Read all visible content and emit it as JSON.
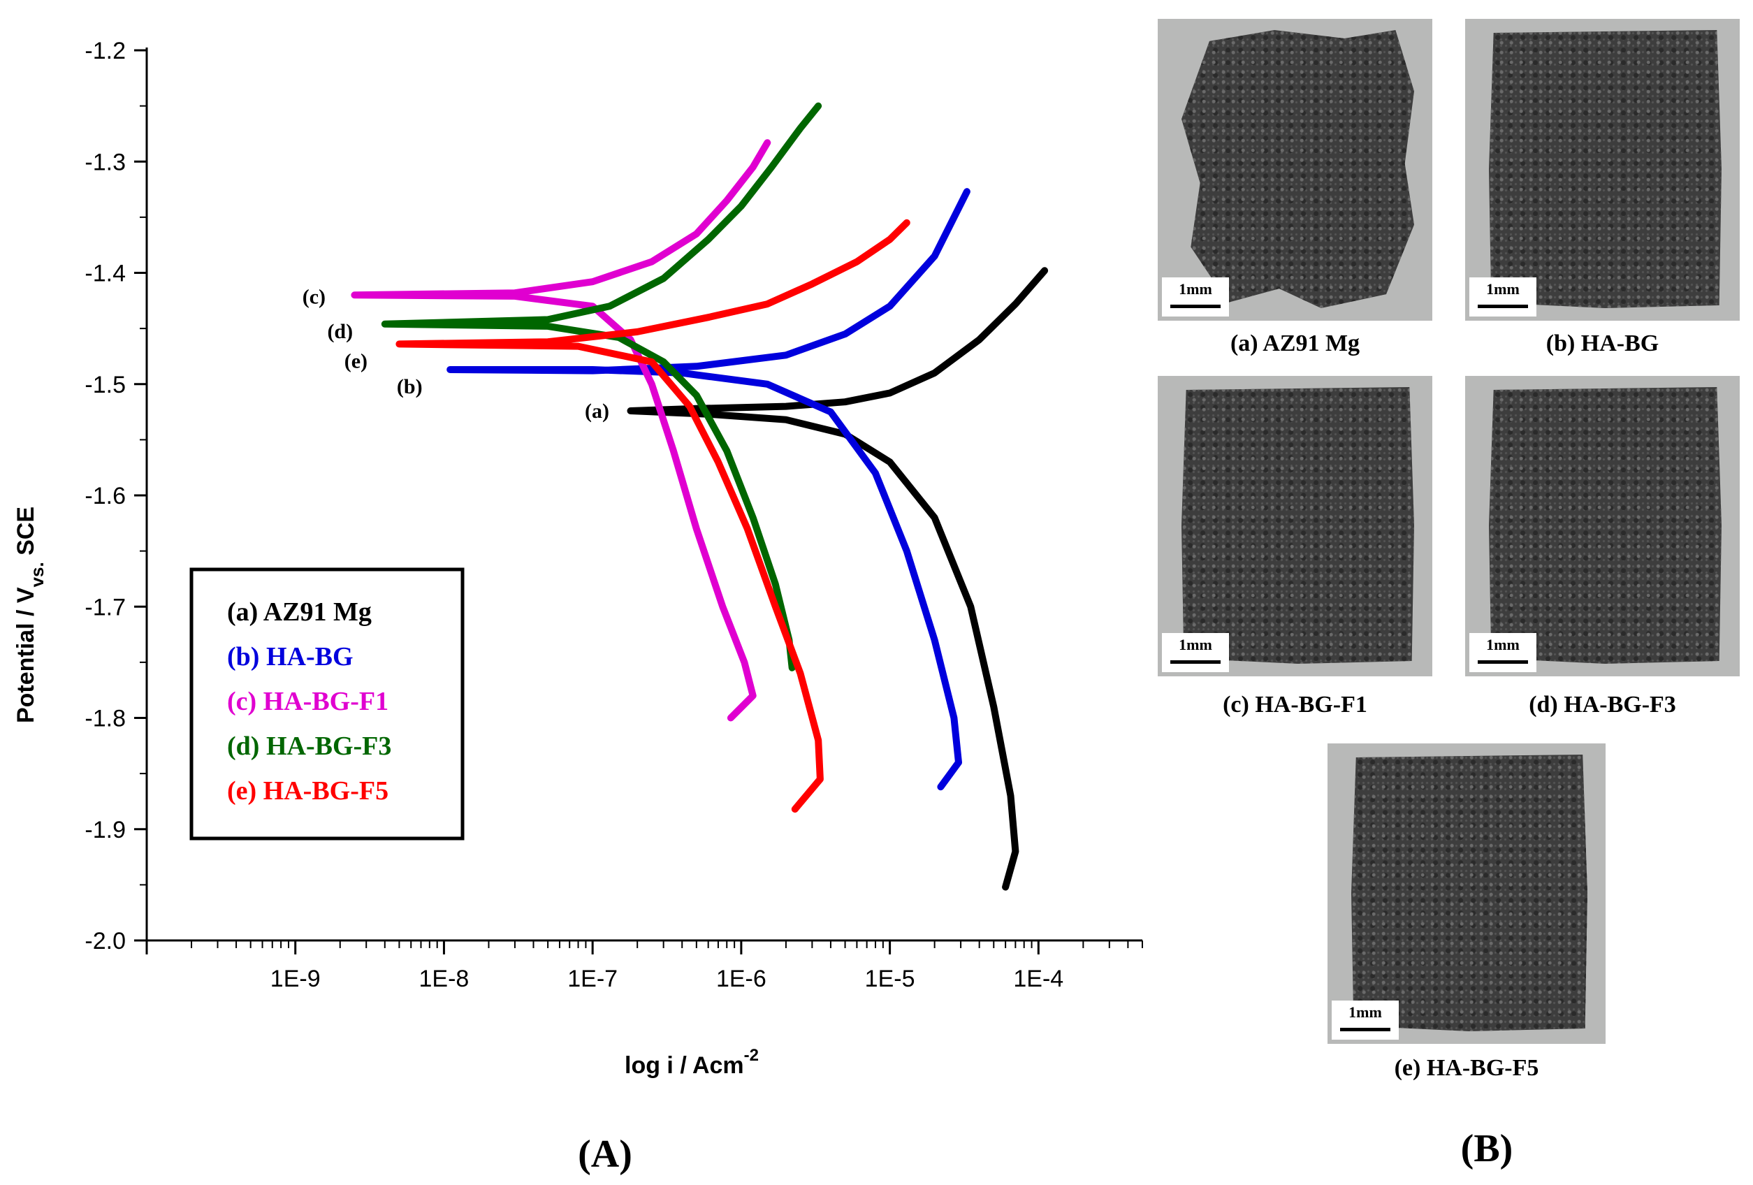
{
  "chart_data": {
    "type": "line",
    "xlabel": "log i / Acm",
    "xlabel_sup": "-2",
    "ylabel": "Potential / V",
    "ylabel_sub": "vs.",
    "ylabel_tail": " SCE",
    "x_scale": "log",
    "xlim": [
      1e-10,
      0.0005
    ],
    "ylim": [
      -2.0,
      -1.2
    ],
    "x_ticks": [
      "1E-9",
      "1E-8",
      "1E-7",
      "1E-6",
      "1E-5",
      "1E-4"
    ],
    "y_ticks": [
      "-1.2",
      "-1.3",
      "-1.4",
      "-1.5",
      "-1.6",
      "-1.7",
      "-1.8",
      "-1.9",
      "-2.0"
    ],
    "legend": {
      "placement": "lower-left",
      "entries": [
        "(a) AZ91 Mg",
        "(b) HA-BG",
        "(c) HA-BG-F1",
        "(d) HA-BG-F3",
        "(e) HA-BG-F5"
      ]
    },
    "series": [
      {
        "name": "(a) AZ91 Mg",
        "tag": "(a)",
        "color": "#000000",
        "anodic": [
          [
            1.8e-07,
            -1.524
          ],
          [
            5e-07,
            -1.522
          ],
          [
            2e-06,
            -1.52
          ],
          [
            5e-06,
            -1.516
          ],
          [
            1e-05,
            -1.508
          ],
          [
            2e-05,
            -1.49
          ],
          [
            4e-05,
            -1.46
          ],
          [
            7e-05,
            -1.428
          ],
          [
            0.00011,
            -1.398
          ]
        ],
        "cathodic": [
          [
            1.8e-07,
            -1.524
          ],
          [
            6e-07,
            -1.527
          ],
          [
            2e-06,
            -1.532
          ],
          [
            5e-06,
            -1.545
          ],
          [
            1e-05,
            -1.57
          ],
          [
            2e-05,
            -1.62
          ],
          [
            3.5e-05,
            -1.7
          ],
          [
            5e-05,
            -1.79
          ],
          [
            6.5e-05,
            -1.87
          ],
          [
            7e-05,
            -1.92
          ],
          [
            6e-05,
            -1.952
          ]
        ]
      },
      {
        "name": "(b) HA-BG",
        "tag": "(b)",
        "color": "#0000dd",
        "anodic": [
          [
            1.1e-08,
            -1.487
          ],
          [
            1e-07,
            -1.488
          ],
          [
            5e-07,
            -1.484
          ],
          [
            2e-06,
            -1.474
          ],
          [
            5e-06,
            -1.455
          ],
          [
            1e-05,
            -1.43
          ],
          [
            2e-05,
            -1.385
          ],
          [
            3.3e-05,
            -1.327
          ]
        ],
        "cathodic": [
          [
            1.1e-08,
            -1.487
          ],
          [
            1e-07,
            -1.487
          ],
          [
            4e-07,
            -1.49
          ],
          [
            1.5e-06,
            -1.5
          ],
          [
            4e-06,
            -1.525
          ],
          [
            8e-06,
            -1.58
          ],
          [
            1.3e-05,
            -1.65
          ],
          [
            2e-05,
            -1.73
          ],
          [
            2.7e-05,
            -1.8
          ],
          [
            2.9e-05,
            -1.84
          ],
          [
            2.2e-05,
            -1.862
          ]
        ]
      },
      {
        "name": "(c) HA-BG-F1",
        "tag": "(c)",
        "color": "#e000d0",
        "anodic": [
          [
            2.5e-09,
            -1.42
          ],
          [
            3e-08,
            -1.418
          ],
          [
            1e-07,
            -1.408
          ],
          [
            2.5e-07,
            -1.39
          ],
          [
            5e-07,
            -1.365
          ],
          [
            8e-07,
            -1.335
          ],
          [
            1.2e-06,
            -1.305
          ],
          [
            1.5e-06,
            -1.283
          ]
        ],
        "cathodic": [
          [
            2.5e-09,
            -1.42
          ],
          [
            3e-08,
            -1.421
          ],
          [
            1e-07,
            -1.43
          ],
          [
            1.8e-07,
            -1.46
          ],
          [
            2.5e-07,
            -1.5
          ],
          [
            3.5e-07,
            -1.56
          ],
          [
            5e-07,
            -1.63
          ],
          [
            7.5e-07,
            -1.7
          ],
          [
            1.05e-06,
            -1.75
          ],
          [
            1.2e-06,
            -1.78
          ],
          [
            8.5e-07,
            -1.8
          ]
        ]
      },
      {
        "name": "(d) HA-BG-F3",
        "tag": "(d)",
        "color": "#006600",
        "anodic": [
          [
            4e-09,
            -1.446
          ],
          [
            5e-08,
            -1.442
          ],
          [
            1.3e-07,
            -1.43
          ],
          [
            3e-07,
            -1.405
          ],
          [
            6e-07,
            -1.37
          ],
          [
            1e-06,
            -1.34
          ],
          [
            1.6e-06,
            -1.305
          ],
          [
            2.5e-06,
            -1.27
          ],
          [
            3.3e-06,
            -1.25
          ]
        ],
        "cathodic": [
          [
            4e-09,
            -1.446
          ],
          [
            5e-08,
            -1.448
          ],
          [
            1.5e-07,
            -1.458
          ],
          [
            3e-07,
            -1.48
          ],
          [
            5e-07,
            -1.51
          ],
          [
            8e-07,
            -1.56
          ],
          [
            1.2e-06,
            -1.62
          ],
          [
            1.7e-06,
            -1.68
          ],
          [
            2.1e-06,
            -1.73
          ],
          [
            2.2e-06,
            -1.755
          ]
        ]
      },
      {
        "name": "(e) HA-BG-F5",
        "tag": "(e)",
        "color": "#ff0000",
        "anodic": [
          [
            5e-09,
            -1.464
          ],
          [
            5e-08,
            -1.462
          ],
          [
            2e-07,
            -1.453
          ],
          [
            6e-07,
            -1.44
          ],
          [
            1.5e-06,
            -1.428
          ],
          [
            3e-06,
            -1.41
          ],
          [
            6e-06,
            -1.39
          ],
          [
            1e-05,
            -1.37
          ],
          [
            1.3e-05,
            -1.355
          ]
        ],
        "cathodic": [
          [
            5e-09,
            -1.464
          ],
          [
            8e-08,
            -1.466
          ],
          [
            2.5e-07,
            -1.48
          ],
          [
            4.5e-07,
            -1.52
          ],
          [
            7e-07,
            -1.57
          ],
          [
            1.1e-06,
            -1.63
          ],
          [
            1.7e-06,
            -1.7
          ],
          [
            2.5e-06,
            -1.76
          ],
          [
            3.3e-06,
            -1.82
          ],
          [
            3.4e-06,
            -1.855
          ],
          [
            2.3e-06,
            -1.882
          ]
        ]
      }
    ]
  },
  "panels": {
    "left": "(A)",
    "right": "(B)"
  },
  "photos": [
    {
      "caption": "(a) AZ91 Mg",
      "scale": "1mm"
    },
    {
      "caption": "(b) HA-BG",
      "scale": "1mm"
    },
    {
      "caption": "(c) HA-BG-F1",
      "scale": "1mm"
    },
    {
      "caption": "(d) HA-BG-F3",
      "scale": "1mm"
    },
    {
      "caption": "(e) HA-BG-F5",
      "scale": "1mm"
    }
  ]
}
